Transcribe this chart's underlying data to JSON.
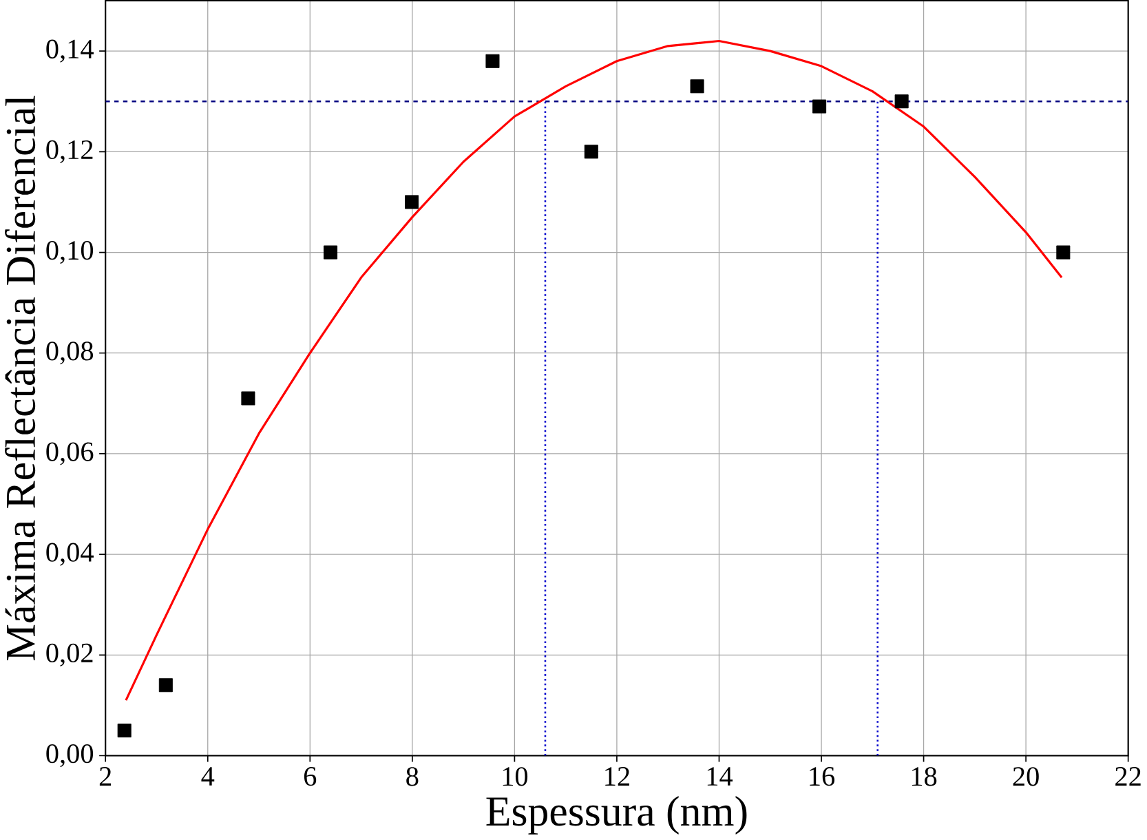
{
  "chart_data": {
    "type": "scatter",
    "xlabel": "Espessura (nm)",
    "ylabel": "Máxima Reflectância Diferencial",
    "xlim": [
      2,
      22
    ],
    "ylim": [
      0,
      0.15
    ],
    "xticks": [
      2,
      4,
      6,
      8,
      10,
      12,
      14,
      16,
      18,
      20,
      22
    ],
    "yticks": [
      {
        "value": 0,
        "label": "0,00"
      },
      {
        "value": 0.02,
        "label": "0,02"
      },
      {
        "value": 0.04,
        "label": "0,04"
      },
      {
        "value": 0.06,
        "label": "0,06"
      },
      {
        "value": 0.08,
        "label": "0,08"
      },
      {
        "value": 0.1,
        "label": "0,10"
      },
      {
        "value": 0.12,
        "label": "0,12"
      },
      {
        "value": 0.14,
        "label": "0,14"
      }
    ],
    "grid": true,
    "series": [
      {
        "marker": "square",
        "color": "#000000",
        "x": [
          2.37,
          3.18,
          4.79,
          6.4,
          7.99,
          9.57,
          11.5,
          13.57,
          15.96,
          17.57,
          20.73
        ],
        "values": [
          0.005,
          0.014,
          0.071,
          0.1,
          0.11,
          0.138,
          0.12,
          0.133,
          0.129,
          0.13,
          0.1
        ]
      },
      {
        "type": "line",
        "marker": "none",
        "line_style": "solid",
        "color": "#ff0000",
        "x": [
          2.4,
          3,
          4,
          5,
          6,
          7,
          8,
          9,
          10,
          11,
          12,
          13,
          14,
          15,
          16,
          17,
          18,
          19,
          20,
          20.7
        ],
        "values": [
          0.011,
          0.024,
          0.045,
          0.064,
          0.08,
          0.095,
          0.107,
          0.118,
          0.127,
          0.133,
          0.138,
          0.141,
          0.142,
          0.14,
          0.137,
          0.132,
          0.125,
          0.115,
          0.104,
          0.095
        ]
      }
    ],
    "ref_lines": [
      {
        "axis": "y",
        "value": 0.13,
        "color": "#000080",
        "line_style": "dashed"
      },
      {
        "axis": "x",
        "value": 10.6,
        "color": "#0000cc",
        "line_style": "dotted"
      },
      {
        "axis": "x",
        "value": 17.1,
        "color": "#0000cc",
        "line_style": "dotted"
      }
    ]
  }
}
